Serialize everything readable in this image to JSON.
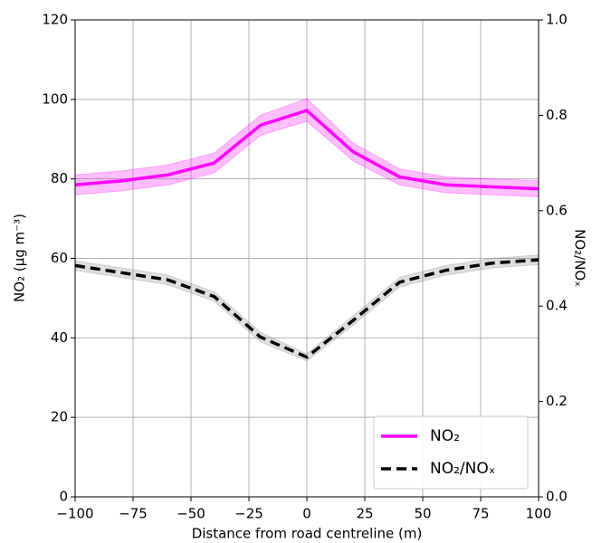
{
  "chart_data": {
    "type": "line",
    "x_label": "Distance from road centreline (m)",
    "y_label": "NO₂ (μg m⁻³)",
    "y2_label": "NO₂/NOₓ",
    "x": [
      -100,
      -80,
      -60,
      -40,
      -20,
      0,
      20,
      40,
      60,
      80,
      100
    ],
    "series": [
      {
        "name": "NO₂",
        "color": "#ff00ff",
        "band_color": "#ff00ff",
        "dash": false,
        "axis": "y",
        "values": [
          78.5,
          79.5,
          81,
          84,
          93.5,
          97.2,
          86.8,
          80.5,
          78.5,
          78,
          77.5
        ],
        "lower": [
          76,
          77,
          78.5,
          81.5,
          91,
          94.5,
          84.5,
          78.5,
          76.5,
          76,
          75.5
        ],
        "upper": [
          81,
          82,
          83.5,
          86.5,
          96,
          100.2,
          89,
          82.5,
          80.5,
          80,
          79.5
        ]
      },
      {
        "name": "NO₂/NOₓ",
        "color": "#000000",
        "band_color": "#808080",
        "dash": true,
        "axis": "y2",
        "values": [
          0.485,
          0.47,
          0.455,
          0.42,
          0.335,
          0.293,
          0.37,
          0.45,
          0.475,
          0.49,
          0.497
        ],
        "lower": [
          0.475,
          0.46,
          0.445,
          0.41,
          0.325,
          0.285,
          0.36,
          0.44,
          0.465,
          0.48,
          0.487
        ],
        "upper": [
          0.495,
          0.48,
          0.465,
          0.43,
          0.345,
          0.3,
          0.38,
          0.46,
          0.485,
          0.5,
          0.507
        ]
      }
    ],
    "xlim": [
      -100,
      100
    ],
    "xticks": [
      {
        "value": -100,
        "label": "−100"
      },
      {
        "value": -75,
        "label": "−75"
      },
      {
        "value": -50,
        "label": "−50"
      },
      {
        "value": -25,
        "label": "−25"
      },
      0,
      25,
      50,
      75,
      100
    ],
    "ylim": [
      0,
      120
    ],
    "yticks": [
      0,
      20,
      40,
      60,
      80,
      100,
      120
    ],
    "y2lim": [
      0,
      1
    ],
    "y2ticks": [
      {
        "value": 0,
        "label": "0.0"
      },
      0.2,
      0.4,
      0.6,
      0.8,
      {
        "value": 1,
        "label": "1.0"
      }
    ],
    "grid": true,
    "legend": "lower right"
  }
}
